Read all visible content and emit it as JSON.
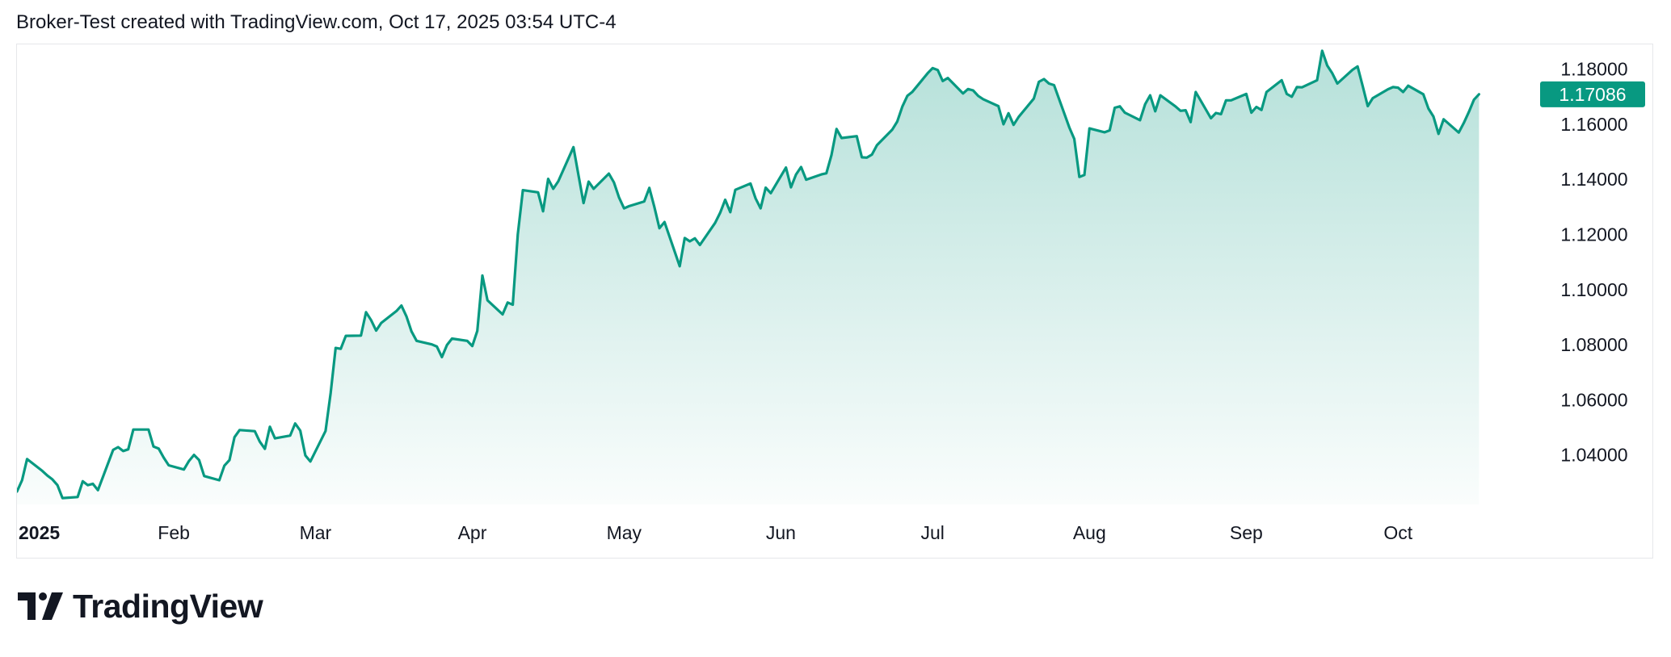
{
  "header": {
    "attribution": "Broker-Test created with TradingView.com, Oct 17, 2025 03:54 UTC-4"
  },
  "brand": {
    "wordmark": "TradingView",
    "accent": "#089981"
  },
  "chart_data": {
    "type": "area",
    "title": "",
    "xlabel": "",
    "ylabel": "",
    "ylim": [
      1.022,
      1.189
    ],
    "y_ticks": [
      "1.18000",
      "1.16000",
      "1.14000",
      "1.12000",
      "1.10000",
      "1.08000",
      "1.06000",
      "1.04000"
    ],
    "y_tick_values": [
      1.18,
      1.16,
      1.14,
      1.12,
      1.1,
      1.08,
      1.06,
      1.04
    ],
    "x_ticks": [
      {
        "label": "2025",
        "date": "2025-01-01",
        "bold": true
      },
      {
        "label": "Feb",
        "date": "2025-02-01"
      },
      {
        "label": "Mar",
        "date": "2025-03-01"
      },
      {
        "label": "Apr",
        "date": "2025-04-01"
      },
      {
        "label": "May",
        "date": "2025-05-01"
      },
      {
        "label": "Jun",
        "date": "2025-06-01"
      },
      {
        "label": "Jul",
        "date": "2025-07-01"
      },
      {
        "label": "Aug",
        "date": "2025-08-01"
      },
      {
        "label": "Sep",
        "date": "2025-09-01"
      },
      {
        "label": "Oct",
        "date": "2025-10-01"
      }
    ],
    "xlim": [
      "2025-01-01",
      "2025-10-27"
    ],
    "last_value": "1.17086",
    "grid": false,
    "line_color": "#089981",
    "series": [
      {
        "values": [
          [
            "2025-01-01",
            1.0267
          ],
          [
            "2025-01-02",
            1.0308
          ],
          [
            "2025-01-03",
            1.0385
          ],
          [
            "2025-01-06",
            1.0342
          ],
          [
            "2025-01-07",
            1.0325
          ],
          [
            "2025-01-08",
            1.0311
          ],
          [
            "2025-01-09",
            1.029
          ],
          [
            "2025-01-10",
            1.0243
          ],
          [
            "2025-01-13",
            1.0247
          ],
          [
            "2025-01-14",
            1.0304
          ],
          [
            "2025-01-15",
            1.029
          ],
          [
            "2025-01-16",
            1.0295
          ],
          [
            "2025-01-17",
            1.0272
          ],
          [
            "2025-01-20",
            1.0418
          ],
          [
            "2025-01-21",
            1.0428
          ],
          [
            "2025-01-22",
            1.0414
          ],
          [
            "2025-01-23",
            1.042
          ],
          [
            "2025-01-24",
            1.0492
          ],
          [
            "2025-01-27",
            1.0492
          ],
          [
            "2025-01-28",
            1.043
          ],
          [
            "2025-01-29",
            1.0423
          ],
          [
            "2025-01-30",
            1.039
          ],
          [
            "2025-01-31",
            1.0362
          ],
          [
            "2025-02-03",
            1.0347
          ],
          [
            "2025-02-04",
            1.0378
          ],
          [
            "2025-02-05",
            1.04
          ],
          [
            "2025-02-06",
            1.0381
          ],
          [
            "2025-02-07",
            1.0323
          ],
          [
            "2025-02-10",
            1.0308
          ],
          [
            "2025-02-11",
            1.0361
          ],
          [
            "2025-02-12",
            1.0381
          ],
          [
            "2025-02-13",
            1.0464
          ],
          [
            "2025-02-14",
            1.049
          ],
          [
            "2025-02-17",
            1.0486
          ],
          [
            "2025-02-18",
            1.0448
          ],
          [
            "2025-02-19",
            1.0422
          ],
          [
            "2025-02-20",
            1.0502
          ],
          [
            "2025-02-21",
            1.046
          ],
          [
            "2025-02-24",
            1.047
          ],
          [
            "2025-02-25",
            1.0514
          ],
          [
            "2025-02-26",
            1.0488
          ],
          [
            "2025-02-27",
            1.0398
          ],
          [
            "2025-02-28",
            1.0376
          ],
          [
            "2025-03-03",
            1.0487
          ],
          [
            "2025-03-04",
            1.0624
          ],
          [
            "2025-03-05",
            1.0788
          ],
          [
            "2025-03-06",
            1.0785
          ],
          [
            "2025-03-07",
            1.0832
          ],
          [
            "2025-03-10",
            1.0833
          ],
          [
            "2025-03-11",
            1.0918
          ],
          [
            "2025-03-12",
            1.0889
          ],
          [
            "2025-03-13",
            1.0851
          ],
          [
            "2025-03-14",
            1.0879
          ],
          [
            "2025-03-17",
            1.0922
          ],
          [
            "2025-03-18",
            1.0942
          ],
          [
            "2025-03-19",
            1.0902
          ],
          [
            "2025-03-20",
            1.0848
          ],
          [
            "2025-03-21",
            1.0814
          ],
          [
            "2025-03-24",
            1.0801
          ],
          [
            "2025-03-25",
            1.0793
          ],
          [
            "2025-03-26",
            1.0755
          ],
          [
            "2025-03-27",
            1.0799
          ],
          [
            "2025-03-28",
            1.0822
          ],
          [
            "2025-03-31",
            1.0814
          ],
          [
            "2025-04-01",
            1.0795
          ],
          [
            "2025-04-02",
            1.085
          ],
          [
            "2025-04-03",
            1.1051
          ],
          [
            "2025-04-04",
            1.0961
          ],
          [
            "2025-04-07",
            1.091
          ],
          [
            "2025-04-08",
            1.0953
          ],
          [
            "2025-04-09",
            1.0945
          ],
          [
            "2025-04-10",
            1.12
          ],
          [
            "2025-04-11",
            1.1361
          ],
          [
            "2025-04-14",
            1.1353
          ],
          [
            "2025-04-15",
            1.1284
          ],
          [
            "2025-04-16",
            1.1402
          ],
          [
            "2025-04-17",
            1.1366
          ],
          [
            "2025-04-18",
            1.1393
          ],
          [
            "2025-04-21",
            1.1517
          ],
          [
            "2025-04-22",
            1.1414
          ],
          [
            "2025-04-23",
            1.1314
          ],
          [
            "2025-04-24",
            1.1392
          ],
          [
            "2025-04-25",
            1.1366
          ],
          [
            "2025-04-28",
            1.1421
          ],
          [
            "2025-04-29",
            1.1389
          ],
          [
            "2025-04-30",
            1.1335
          ],
          [
            "2025-05-01",
            1.1295
          ],
          [
            "2025-05-02",
            1.1303
          ],
          [
            "2025-05-05",
            1.132
          ],
          [
            "2025-05-06",
            1.1369
          ],
          [
            "2025-05-07",
            1.1299
          ],
          [
            "2025-05-08",
            1.1223
          ],
          [
            "2025-05-09",
            1.1245
          ],
          [
            "2025-05-12",
            1.1085
          ],
          [
            "2025-05-13",
            1.1187
          ],
          [
            "2025-05-14",
            1.1175
          ],
          [
            "2025-05-15",
            1.1186
          ],
          [
            "2025-05-16",
            1.1162
          ],
          [
            "2025-05-19",
            1.1242
          ],
          [
            "2025-05-20",
            1.1279
          ],
          [
            "2025-05-21",
            1.1326
          ],
          [
            "2025-05-22",
            1.1281
          ],
          [
            "2025-05-23",
            1.1362
          ],
          [
            "2025-05-26",
            1.1385
          ],
          [
            "2025-05-27",
            1.1331
          ],
          [
            "2025-05-28",
            1.1295
          ],
          [
            "2025-05-29",
            1.137
          ],
          [
            "2025-05-30",
            1.135
          ],
          [
            "2025-06-02",
            1.1443
          ],
          [
            "2025-06-03",
            1.1371
          ],
          [
            "2025-06-04",
            1.1418
          ],
          [
            "2025-06-05",
            1.1445
          ],
          [
            "2025-06-06",
            1.1399
          ],
          [
            "2025-06-09",
            1.1418
          ],
          [
            "2025-06-10",
            1.1422
          ],
          [
            "2025-06-11",
            1.1488
          ],
          [
            "2025-06-12",
            1.1583
          ],
          [
            "2025-06-13",
            1.155
          ],
          [
            "2025-06-16",
            1.1557
          ],
          [
            "2025-06-17",
            1.148
          ],
          [
            "2025-06-18",
            1.1479
          ],
          [
            "2025-06-19",
            1.149
          ],
          [
            "2025-06-20",
            1.1524
          ],
          [
            "2025-06-23",
            1.158
          ],
          [
            "2025-06-24",
            1.161
          ],
          [
            "2025-06-25",
            1.1664
          ],
          [
            "2025-06-26",
            1.1703
          ],
          [
            "2025-06-27",
            1.1718
          ],
          [
            "2025-06-30",
            1.1785
          ],
          [
            "2025-07-01",
            1.1804
          ],
          [
            "2025-07-02",
            1.1797
          ],
          [
            "2025-07-03",
            1.1757
          ],
          [
            "2025-07-04",
            1.1768
          ],
          [
            "2025-07-07",
            1.1712
          ],
          [
            "2025-07-08",
            1.1728
          ],
          [
            "2025-07-09",
            1.1723
          ],
          [
            "2025-07-10",
            1.1703
          ],
          [
            "2025-07-11",
            1.1691
          ],
          [
            "2025-07-14",
            1.1666
          ],
          [
            "2025-07-15",
            1.16
          ],
          [
            "2025-07-16",
            1.164
          ],
          [
            "2025-07-17",
            1.1598
          ],
          [
            "2025-07-18",
            1.1627
          ],
          [
            "2025-07-21",
            1.1693
          ],
          [
            "2025-07-22",
            1.1754
          ],
          [
            "2025-07-23",
            1.1764
          ],
          [
            "2025-07-24",
            1.1748
          ],
          [
            "2025-07-25",
            1.1742
          ],
          [
            "2025-07-28",
            1.1589
          ],
          [
            "2025-07-29",
            1.1547
          ],
          [
            "2025-07-30",
            1.1409
          ],
          [
            "2025-07-31",
            1.1416
          ],
          [
            "2025-08-01",
            1.1585
          ],
          [
            "2025-08-04",
            1.1571
          ],
          [
            "2025-08-05",
            1.1578
          ],
          [
            "2025-08-06",
            1.166
          ],
          [
            "2025-08-07",
            1.1665
          ],
          [
            "2025-08-08",
            1.1642
          ],
          [
            "2025-08-11",
            1.1615
          ],
          [
            "2025-08-12",
            1.1673
          ],
          [
            "2025-08-13",
            1.1705
          ],
          [
            "2025-08-14",
            1.1647
          ],
          [
            "2025-08-15",
            1.1705
          ],
          [
            "2025-08-18",
            1.1665
          ],
          [
            "2025-08-19",
            1.1649
          ],
          [
            "2025-08-20",
            1.1651
          ],
          [
            "2025-08-21",
            1.1608
          ],
          [
            "2025-08-22",
            1.1717
          ],
          [
            "2025-08-25",
            1.1622
          ],
          [
            "2025-08-26",
            1.1641
          ],
          [
            "2025-08-27",
            1.1637
          ],
          [
            "2025-08-28",
            1.1687
          ],
          [
            "2025-08-29",
            1.1687
          ],
          [
            "2025-09-01",
            1.171
          ],
          [
            "2025-09-02",
            1.1642
          ],
          [
            "2025-09-03",
            1.1663
          ],
          [
            "2025-09-04",
            1.1652
          ],
          [
            "2025-09-05",
            1.1717
          ],
          [
            "2025-09-08",
            1.176
          ],
          [
            "2025-09-09",
            1.171
          ],
          [
            "2025-09-10",
            1.17
          ],
          [
            "2025-09-11",
            1.1735
          ],
          [
            "2025-09-12",
            1.1734
          ],
          [
            "2025-09-15",
            1.176
          ],
          [
            "2025-09-16",
            1.1867
          ],
          [
            "2025-09-17",
            1.1813
          ],
          [
            "2025-09-18",
            1.1785
          ],
          [
            "2025-09-19",
            1.1748
          ],
          [
            "2025-09-22",
            1.1798
          ],
          [
            "2025-09-23",
            1.181
          ],
          [
            "2025-09-24",
            1.1739
          ],
          [
            "2025-09-25",
            1.1666
          ],
          [
            "2025-09-26",
            1.1695
          ],
          [
            "2025-09-29",
            1.1727
          ],
          [
            "2025-09-30",
            1.1735
          ],
          [
            "2025-10-01",
            1.1733
          ],
          [
            "2025-10-02",
            1.1717
          ],
          [
            "2025-10-03",
            1.174
          ],
          [
            "2025-10-06",
            1.1709
          ],
          [
            "2025-10-07",
            1.1657
          ],
          [
            "2025-10-08",
            1.1628
          ],
          [
            "2025-10-09",
            1.1565
          ],
          [
            "2025-10-10",
            1.1618
          ],
          [
            "2025-10-13",
            1.157
          ],
          [
            "2025-10-14",
            1.1605
          ],
          [
            "2025-10-15",
            1.1645
          ],
          [
            "2025-10-16",
            1.1689
          ],
          [
            "2025-10-17",
            1.1709
          ]
        ]
      }
    ]
  }
}
